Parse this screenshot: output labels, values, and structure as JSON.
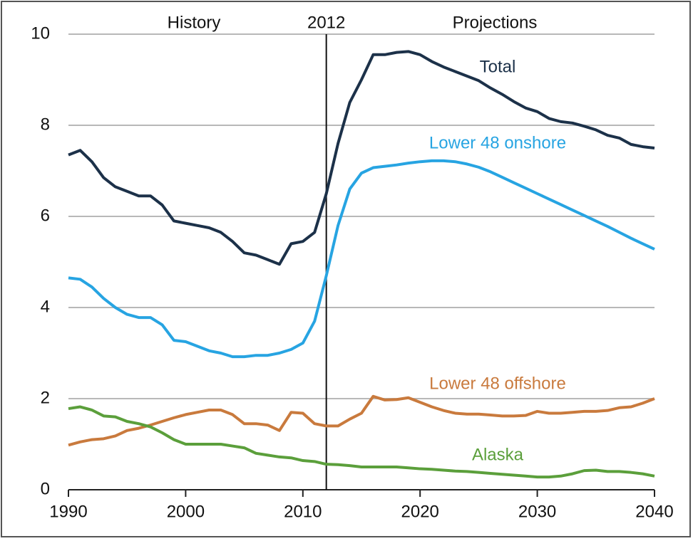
{
  "chart_data": {
    "type": "line",
    "annotations": [
      "History",
      "Projections"
    ],
    "divider": {
      "value": 2012,
      "label": "2012"
    },
    "x": [
      1990,
      1991,
      1992,
      1993,
      1994,
      1995,
      1996,
      1997,
      1998,
      1999,
      2000,
      2001,
      2002,
      2003,
      2004,
      2005,
      2006,
      2007,
      2008,
      2009,
      2010,
      2011,
      2012,
      2013,
      2014,
      2015,
      2016,
      2017,
      2018,
      2019,
      2020,
      2021,
      2022,
      2023,
      2024,
      2025,
      2026,
      2027,
      2028,
      2029,
      2030,
      2031,
      2032,
      2033,
      2034,
      2035,
      2036,
      2037,
      2038,
      2039,
      2040
    ],
    "series": [
      {
        "name": "Total",
        "color": "#1c3149",
        "values": [
          7.35,
          7.45,
          7.2,
          6.85,
          6.65,
          6.55,
          6.45,
          6.45,
          6.25,
          5.9,
          5.85,
          5.8,
          5.75,
          5.65,
          5.45,
          5.2,
          5.15,
          5.05,
          4.95,
          5.4,
          5.45,
          5.65,
          6.5,
          7.6,
          8.5,
          9.0,
          9.55,
          9.55,
          9.6,
          9.62,
          9.55,
          9.4,
          9.28,
          9.18,
          9.08,
          8.98,
          8.82,
          8.68,
          8.52,
          8.38,
          8.3,
          8.15,
          8.08,
          8.05,
          7.98,
          7.9,
          7.78,
          7.72,
          7.58,
          7.53,
          7.5
        ]
      },
      {
        "name": "Lower 48 onshore",
        "color": "#27a4e2",
        "values": [
          4.65,
          4.62,
          4.45,
          4.2,
          4.0,
          3.85,
          3.78,
          3.78,
          3.62,
          3.28,
          3.25,
          3.15,
          3.05,
          3.0,
          2.92,
          2.92,
          2.95,
          2.95,
          3.0,
          3.08,
          3.22,
          3.7,
          4.7,
          5.8,
          6.6,
          6.95,
          7.07,
          7.1,
          7.13,
          7.17,
          7.2,
          7.22,
          7.22,
          7.2,
          7.15,
          7.08,
          6.98,
          6.86,
          6.74,
          6.62,
          6.5,
          6.38,
          6.26,
          6.14,
          6.02,
          5.9,
          5.78,
          5.65,
          5.52,
          5.4,
          5.28
        ]
      },
      {
        "name": "Lower 48 offshore",
        "color": "#c97a3d",
        "values": [
          0.98,
          1.05,
          1.1,
          1.12,
          1.18,
          1.3,
          1.35,
          1.42,
          1.5,
          1.58,
          1.65,
          1.7,
          1.75,
          1.75,
          1.65,
          1.45,
          1.45,
          1.42,
          1.3,
          1.7,
          1.68,
          1.45,
          1.4,
          1.4,
          1.55,
          1.68,
          2.05,
          1.97,
          1.98,
          2.02,
          1.92,
          1.82,
          1.74,
          1.68,
          1.66,
          1.66,
          1.64,
          1.62,
          1.62,
          1.63,
          1.72,
          1.68,
          1.68,
          1.7,
          1.72,
          1.72,
          1.74,
          1.8,
          1.82,
          1.9,
          2.0
        ]
      },
      {
        "name": "Alaska",
        "color": "#5b9f3b",
        "values": [
          1.78,
          1.82,
          1.75,
          1.62,
          1.6,
          1.5,
          1.45,
          1.38,
          1.25,
          1.1,
          1.0,
          1.0,
          1.0,
          1.0,
          0.96,
          0.92,
          0.8,
          0.76,
          0.72,
          0.7,
          0.64,
          0.62,
          0.56,
          0.55,
          0.53,
          0.5,
          0.5,
          0.5,
          0.5,
          0.48,
          0.46,
          0.45,
          0.43,
          0.41,
          0.4,
          0.38,
          0.36,
          0.34,
          0.32,
          0.3,
          0.28,
          0.28,
          0.3,
          0.35,
          0.42,
          0.43,
          0.4,
          0.4,
          0.38,
          0.35,
          0.3
        ]
      }
    ],
    "xlim": [
      1990,
      2040
    ],
    "xticks": [
      1990,
      2000,
      2010,
      2020,
      2030,
      2040
    ],
    "ylim": [
      0,
      10
    ],
    "yticks": [
      0,
      2,
      4,
      6,
      8,
      10
    ],
    "grid": true
  }
}
